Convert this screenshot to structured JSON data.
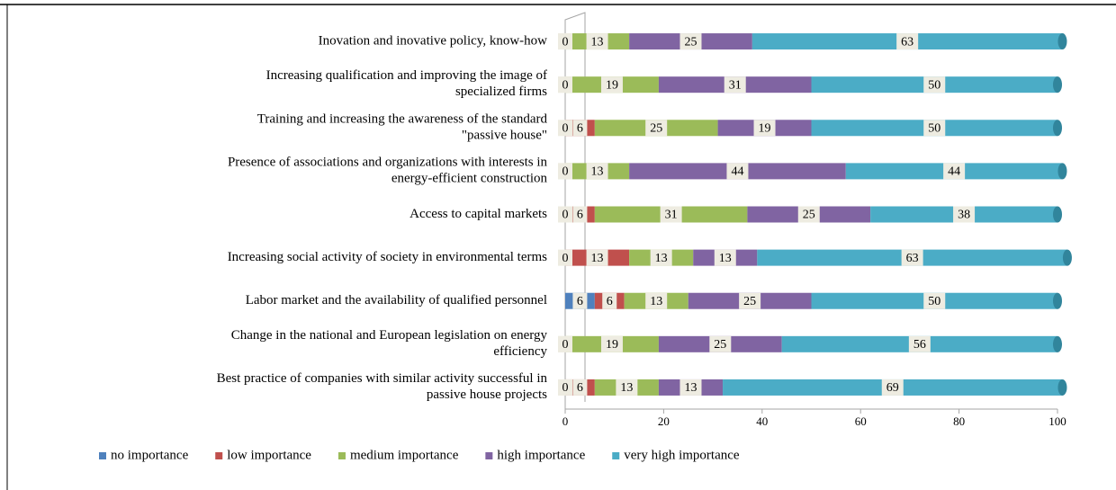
{
  "chart_data": {
    "type": "stacked-bar-horizontal",
    "categories": [
      "Inovation and inovative policy, know-how",
      "Increasing qualification and improving the image of\nspecialized firms",
      "Training and increasing the awareness of the standard\n\"passive house\"",
      "Presence of associations and organizations with interests in\nenergy-efficient construction",
      "Access to capital markets",
      "Increasing social activity of society in environmental terms",
      "Labor market and the availability of qualified personnel",
      "Change in the national and European legislation on energy\nefficiency",
      "Best practice of companies with similar activity successful in\npassive house projects"
    ],
    "series": [
      {
        "name": "no importance",
        "color": "#4f81bd",
        "values": [
          0,
          0,
          0,
          0,
          0,
          0,
          6,
          0,
          0
        ]
      },
      {
        "name": "low importance",
        "color": "#c0504d",
        "values": [
          0,
          0,
          6,
          0,
          6,
          13,
          6,
          0,
          6
        ]
      },
      {
        "name": "medium importance",
        "color": "#9bbb59",
        "values": [
          13,
          19,
          25,
          13,
          31,
          13,
          13,
          19,
          13
        ]
      },
      {
        "name": "high importance",
        "color": "#8064a2",
        "values": [
          25,
          31,
          19,
          44,
          25,
          13,
          25,
          25,
          13
        ]
      },
      {
        "name": "very high importance",
        "color": "#4bacc6",
        "values": [
          63,
          50,
          50,
          44,
          38,
          63,
          50,
          56,
          69
        ]
      }
    ],
    "xlim": [
      0,
      100
    ],
    "xticks": [
      0,
      20,
      40,
      60,
      80,
      100
    ],
    "legend": "bottom"
  }
}
